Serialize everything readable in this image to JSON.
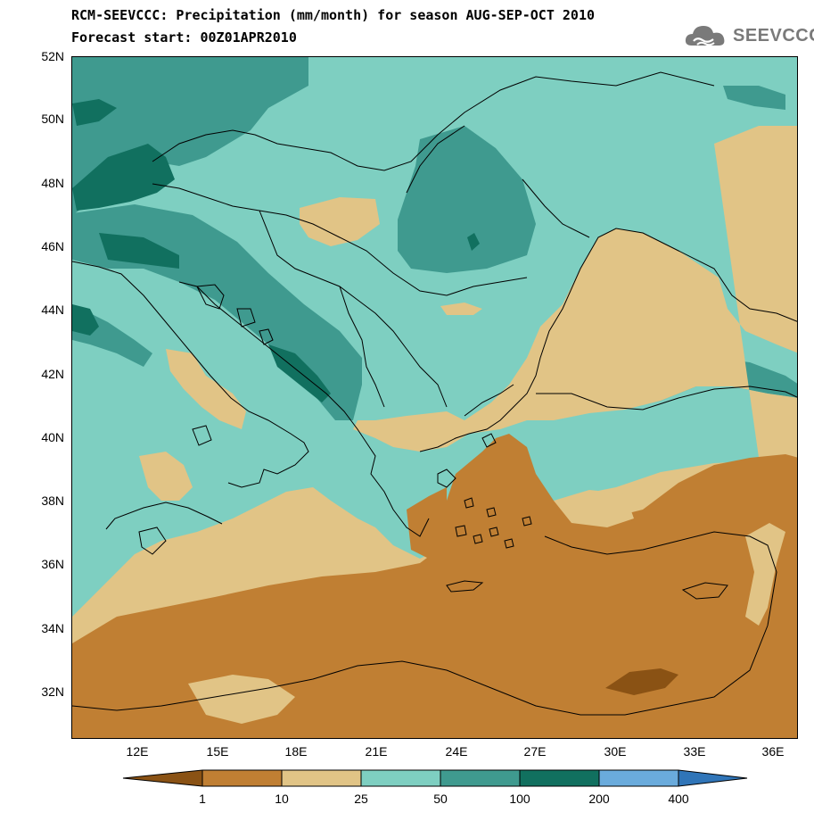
{
  "header": {
    "title_line1": "RCM-SEEVCCC: Precipitation (mm/month) for season AUG-SEP-OCT 2010",
    "title_line2": "Forecast start: 00Z01APR2010"
  },
  "logo": {
    "text": "SEEVCCC",
    "icon": "cloud-icon"
  },
  "map": {
    "type": "precipitation-forecast-map",
    "region": "South-East Europe & Eastern Mediterranean",
    "lat_labels": [
      "52N",
      "50N",
      "48N",
      "46N",
      "44N",
      "42N",
      "40N",
      "38N",
      "36N",
      "34N",
      "32N"
    ],
    "lon_labels": [
      "12E",
      "15E",
      "18E",
      "21E",
      "24E",
      "27E",
      "30E",
      "33E",
      "36E"
    ],
    "lat_range": [
      30.5,
      52
    ],
    "lon_range": [
      9.5,
      37.1
    ],
    "colors": {
      "lt1": "#8a5214",
      "c1_10": "#c07f33",
      "c10_25": "#e1c486",
      "c25_50": "#7ecfc1",
      "c50_100": "#3f9a8f",
      "c100_200": "#11705f",
      "c200_400": "#6aabdc",
      "gt400": "#3075b8",
      "border": "#000000"
    }
  },
  "colorbar": {
    "labels": [
      "1",
      "10",
      "25",
      "50",
      "100",
      "200",
      "400"
    ],
    "colors": [
      "#8a5214",
      "#c07f33",
      "#e1c486",
      "#7ecfc1",
      "#3f9a8f",
      "#11705f",
      "#6aabdc",
      "#3075b8"
    ]
  }
}
